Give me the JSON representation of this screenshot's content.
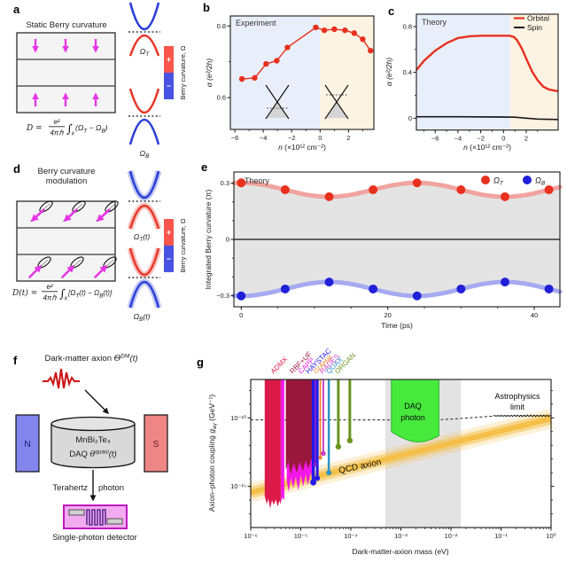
{
  "colors": {
    "accent_red": "#e8301f",
    "accent_blue": "#2020d8",
    "glow_red": "#f1a49e",
    "glow_blue": "#a6aaf0",
    "bg_blue": "#e9effa",
    "bg_orange": "#fdf3e3",
    "grey_fill": "#e4e4e4",
    "magenta": "#e636e6",
    "band_red": "#e8392b",
    "band_blue": "#2b3fd8",
    "colorbar_red": "#f8564d",
    "colorbar_blue": "#4853e4",
    "qcd_gold": "#f5bf45",
    "daq_green": "#46e93c"
  },
  "panel_a": {
    "letter": "a",
    "title": "Static Berry curvature",
    "formula": {
      "lhs": "D =",
      "num": "e²",
      "den": "4πℏ",
      "integral": "∫",
      "integral_sub": "k",
      "open": "(Ω",
      "sub_t": "T",
      "mid": " − Ω",
      "sub_b": "B",
      "close": ")"
    },
    "band_top_label": {
      "base": "Ω",
      "sub": "T",
      "suffix": ""
    },
    "band_bottom_label": {
      "base": "Ω",
      "sub": "B",
      "suffix": ""
    },
    "colorbar": {
      "plus": "+",
      "minus": "−",
      "label": "Berry curvature, Ω"
    }
  },
  "panel_b": {
    "letter": "b",
    "annotation": "Experiment",
    "xlabel_var": "n",
    "xlabel_units": " (×10¹² cm⁻²)",
    "ylabel": "α (e²/2h)",
    "x_ticks": [
      {
        "v": -6,
        "label": "−6"
      },
      {
        "v": -4,
        "label": "−4"
      },
      {
        "v": -2,
        "label": "−2"
      },
      {
        "v": 0,
        "label": "0"
      },
      {
        "v": 2,
        "label": "2"
      }
    ],
    "x_minor": [
      -5,
      -3,
      -1,
      1,
      3
    ],
    "y_ticks": [
      {
        "v": 0.8,
        "label": "0.8"
      },
      {
        "v": 0.6,
        "label": "0.6"
      }
    ],
    "y_minor": [
      0.7
    ]
  },
  "panel_c": {
    "letter": "c",
    "annotation": "Theory",
    "legend": [
      {
        "label": "Orbital",
        "color": "#e8301f"
      },
      {
        "label": "Spin",
        "color": "#1a1a1a"
      }
    ],
    "xlabel_var": "n",
    "xlabel_units": " (×10¹² cm⁻²)",
    "ylabel": "α (e²/2h)",
    "x_ticks": [
      {
        "v": -6,
        "label": "−6"
      },
      {
        "v": -4,
        "label": "−4"
      },
      {
        "v": -2,
        "label": "−2"
      },
      {
        "v": 0,
        "label": "0"
      },
      {
        "v": 2,
        "label": "2"
      }
    ],
    "x_minor": [
      -7,
      -5,
      -3,
      -1,
      1,
      3
    ],
    "y_ticks": [
      {
        "v": 0.8,
        "label": "0.8"
      },
      {
        "v": 0.4,
        "label": "0.4"
      },
      {
        "v": 0,
        "label": "0"
      }
    ],
    "y_minor": [
      0.6,
      0.2
    ]
  },
  "panel_d": {
    "letter": "d",
    "title_line1": "Berry curvature",
    "title_line2": "modulation",
    "formula": {
      "lhs": "D(t) =",
      "num": "e²",
      "den": "4πℏ",
      "integral": "∫",
      "integral_sub": "k",
      "open": "[Ω",
      "sub_t": "T",
      "mid": "(t) − Ω",
      "sub_b": "B",
      "close": "(t)]"
    },
    "band_top_label": {
      "base": "Ω",
      "sub": "T",
      "suffix": "(t)"
    },
    "band_bottom_label": {
      "base": "Ω",
      "sub": "B",
      "suffix": "(t)"
    },
    "colorbar": {
      "plus": "+",
      "minus": "−",
      "label": "Berry curvature, Ω"
    }
  },
  "panel_e": {
    "letter": "e",
    "annotation": "Theory",
    "xlabel": "Time (ps)",
    "ylabel": "Integrated Berry curvature (π)",
    "legend": {
      "omega": "Ω",
      "sub_t": "T",
      "sub_b": "B"
    },
    "x_ticks": [
      {
        "v": 0,
        "label": "0"
      },
      {
        "v": 20,
        "label": "20"
      },
      {
        "v": 40,
        "label": "40"
      }
    ],
    "x_minor": [
      5,
      10,
      15,
      25,
      30,
      35
    ],
    "y_ticks": [
      {
        "v": 0.3,
        "label": "0.3"
      },
      {
        "v": 0,
        "label": "0"
      },
      {
        "v": -0.3,
        "label": "−0.3"
      }
    ],
    "y_minor": [
      0.2,
      0.1,
      -0.1,
      -0.2
    ]
  },
  "panel_f": {
    "letter": "f",
    "axion_label": {
      "pre": "Dark-matter axion ",
      "theta": "Θ",
      "sup": "DM",
      "post": "(t)"
    },
    "magnet_n": "N",
    "magnet_s": "S",
    "crystal_line1": "MnBi₂Te₄",
    "crystal_line2": {
      "pre": "DAQ ",
      "theta": "θ",
      "sup": "quasi",
      "post": "(t)"
    },
    "photon_left": "Terahertz",
    "photon_right": "photon",
    "detector_label": "Single-photon detector"
  },
  "panel_g": {
    "letter": "g",
    "xlabel": "Dark-matter-axion mass (eV)",
    "ylabel": {
      "pre": "Axion–photon coupling ",
      "g": "g",
      "sub": "aγ",
      "post": " (GeV⁻¹)"
    },
    "daq_label_line1": "DAQ",
    "daq_label_line2": "photon",
    "qcd_label": "QCD axion",
    "astro_label_line1": "Astrophysics",
    "astro_label_line2": "limit"
  },
  "chart_data": [
    {
      "type": "scatter",
      "panel": "b",
      "title": "Experiment",
      "xlabel": "n (×10¹² cm⁻²)",
      "ylabel": "α (e²/2h)",
      "xlim": [
        -6.32,
        3.78
      ],
      "ylim": [
        0.51,
        0.83
      ],
      "color": "#e8301f",
      "x": [
        -5.5,
        -4.6,
        -3.8,
        -3.05,
        -2.3,
        -0.3,
        0.3,
        1.0,
        1.75,
        2.4,
        3.0,
        3.55
      ],
      "y": [
        0.652,
        0.655,
        0.694,
        0.703,
        0.74,
        0.796,
        0.788,
        0.791,
        0.788,
        0.78,
        0.763,
        0.731
      ]
    },
    {
      "type": "line",
      "panel": "c",
      "title": "Theory",
      "xlabel": "n (×10¹² cm⁻²)",
      "ylabel": "α (e²/2h)",
      "xlim": [
        -7.65,
        4.8
      ],
      "ylim": [
        -0.1,
        0.91
      ],
      "series": [
        {
          "name": "Orbital",
          "color": "#e8301f",
          "x": [
            -7.65,
            -7,
            -6,
            -5,
            -4,
            -3,
            -2,
            -1,
            0,
            0.5,
            0.9,
            1.2,
            1.6,
            2.0,
            2.5,
            3.0,
            3.5,
            4.0,
            4.8
          ],
          "y": [
            0.42,
            0.5,
            0.59,
            0.655,
            0.7,
            0.715,
            0.72,
            0.72,
            0.72,
            0.72,
            0.71,
            0.68,
            0.61,
            0.52,
            0.41,
            0.33,
            0.275,
            0.25,
            0.235
          ]
        },
        {
          "name": "Spin",
          "color": "#1a1a1a",
          "x": [
            -7.65,
            -4,
            0,
            1,
            2,
            3,
            4.8
          ],
          "y": [
            0.012,
            0.012,
            0.01,
            0.008,
            0.0,
            -0.008,
            -0.012
          ]
        }
      ]
    },
    {
      "type": "scatter-line",
      "panel": "e",
      "title": "Theory",
      "xlabel": "Time (ps)",
      "ylabel": "Integrated Berry curvature (π)",
      "xlim": [
        -1,
        43.5
      ],
      "ylim": [
        -0.36,
        0.36
      ],
      "t": [
        0,
        6,
        12,
        18,
        24,
        30,
        36,
        42
      ],
      "series": [
        {
          "name": "ΩT",
          "color": "#e8301f",
          "glow": "#f1a49e",
          "values": [
            0.302,
            0.265,
            0.228,
            0.265,
            0.302,
            0.265,
            0.228,
            0.265
          ]
        },
        {
          "name": "ΩB",
          "color": "#2020d8",
          "glow": "#a6aaf0",
          "values": [
            -0.302,
            -0.265,
            -0.228,
            -0.265,
            -0.302,
            -0.265,
            -0.228,
            -0.265
          ]
        }
      ],
      "wave": {
        "mean": 0.265,
        "amp": 0.0375,
        "period_ps": 24
      }
    },
    {
      "type": "exclusion-plot",
      "panel": "g",
      "xlabel": "Dark-matter-axion mass (eV)",
      "ylabel": "Axion–photon coupling gaγ (GeV⁻¹)",
      "xlim_log": [
        -6,
        0
      ],
      "ylim_log": [
        -18.0,
        -7.2
      ],
      "x_ticks": [
        {
          "logv": -6,
          "label": "10⁻⁶"
        },
        {
          "logv": -5,
          "label": "10⁻⁵"
        },
        {
          "logv": -4,
          "label": "10⁻⁴"
        },
        {
          "logv": -3,
          "label": "10⁻³"
        },
        {
          "logv": -2,
          "label": "10⁻²"
        },
        {
          "logv": -1,
          "label": "10⁻¹"
        },
        {
          "logv": 0,
          "label": "10⁰"
        }
      ],
      "y_ticks": [
        {
          "logv": -10,
          "label": "10⁻¹⁰"
        },
        {
          "logv": -15,
          "label": "10⁻¹⁵"
        }
      ],
      "y_minor": [
        -8,
        -9,
        -11,
        -12,
        -13,
        -14,
        -16,
        -17
      ],
      "grey_band": {
        "log_mass": [
          -3.31,
          -1.8
        ],
        "color": "#e3e3e3"
      },
      "qcd_band": {
        "label": "QCD axion",
        "color": "#f5bf45",
        "p1": [
          -6,
          -15.45
        ],
        "p2": [
          0,
          -10.05
        ]
      },
      "astro": {
        "label": "Astrophysics limit",
        "dash_points": [
          [
            -6,
            -10.15
          ],
          [
            -2.3,
            -10.15
          ],
          [
            -1.9,
            -10.07
          ],
          [
            -1.5,
            -9.96
          ],
          [
            -1.15,
            -9.87
          ]
        ],
        "wiggle_start": -1.15,
        "wiggle_log_g": -9.85
      },
      "daq_region": {
        "name": "DAQ photon",
        "color": "#46e93c",
        "edge": "#28b428",
        "log_mass": [
          -3.19,
          -2.24
        ],
        "bottom_log_g": [
          -11.0,
          -11.95,
          -11.3
        ]
      },
      "regions": [
        {
          "name": "CAPP-spikes",
          "color": "#f318e8",
          "log_mass": [
            -5.28,
            -4.76
          ],
          "bottom_profile": [
            [
              -5.28,
              -14.6
            ],
            [
              -5.24,
              -15.4
            ],
            [
              -5.2,
              -14.4
            ],
            [
              -5.15,
              -15.1
            ],
            [
              -5.1,
              -14.3
            ],
            [
              -5.05,
              -15.3
            ],
            [
              -5.0,
              -14.2
            ],
            [
              -4.95,
              -15.0
            ],
            [
              -4.9,
              -14.1
            ],
            [
              -4.86,
              -14.9
            ],
            [
              -4.8,
              -14.0
            ],
            [
              -4.76,
              -14.7
            ]
          ]
        },
        {
          "name": "RBF+UF",
          "color": "#99173c",
          "log_mass": [
            -5.3,
            -4.72
          ],
          "bottom_profile": [
            [
              -5.3,
              -13.8
            ],
            [
              -5.25,
              -13.2
            ],
            [
              -5.2,
              -14.1
            ],
            [
              -5.14,
              -13.3
            ],
            [
              -5.08,
              -14.0
            ],
            [
              -5.02,
              -13.2
            ],
            [
              -4.96,
              -13.9
            ],
            [
              -4.9,
              -13.1
            ],
            [
              -4.85,
              -13.7
            ],
            [
              -4.79,
              -13.0
            ],
            [
              -4.72,
              -13.4
            ]
          ]
        },
        {
          "name": "ADMX",
          "color": "#dc1a48",
          "log_mass": [
            -5.72,
            -5.4
          ],
          "bottom_profile": [
            [
              -5.72,
              -15.7
            ],
            [
              -5.68,
              -16.3
            ],
            [
              -5.65,
              -15.9
            ],
            [
              -5.61,
              -16.6
            ],
            [
              -5.575,
              -16.0
            ],
            [
              -5.54,
              -16.35
            ],
            [
              -5.5,
              -15.95
            ],
            [
              -5.46,
              -16.5
            ],
            [
              -5.43,
              -16.05
            ],
            [
              -5.4,
              -16.3
            ]
          ]
        },
        {
          "name": "CAPP",
          "color": "#f318e8",
          "log_mass": [
            -5.4,
            -5.33
          ],
          "bottom_profile": [
            [
              -5.4,
              -16.2
            ],
            [
              -5.37,
              -15.8
            ],
            [
              -5.33,
              -16.0
            ]
          ]
        }
      ],
      "lines": [
        {
          "name": "HAYSTAC",
          "color": "#2218e8",
          "log_mass": -4.75,
          "log_g_end": -14.7,
          "w": 3.5,
          "r": 3.5
        },
        {
          "name": "HAYSTAC-2",
          "color": "#2218e8",
          "log_mass": -4.67,
          "log_g_end": -14.4,
          "w": 3,
          "r": 3
        },
        {
          "name": "CAPP-line",
          "color": "#7a1fd0",
          "log_mass": -4.71,
          "log_g_end": -13.4,
          "w": 2,
          "r": 2.4
        },
        {
          "name": "GrAHal",
          "color": "#f08428",
          "log_mass": -4.61,
          "log_g_end": -12.9,
          "w": 1.8,
          "r": 2.2
        },
        {
          "name": "RADES",
          "color": "#cc3fc0",
          "log_mass": -4.55,
          "log_g_end": -12.6,
          "w": 2,
          "r": 2.8
        },
        {
          "name": "QUAX",
          "color": "#2f94c8",
          "log_mass": -4.44,
          "log_g_end": -14.0,
          "w": 2.5,
          "r": 3
        },
        {
          "name": "ORGAN",
          "color": "#6a9421",
          "log_mass": -4.25,
          "log_g_end": -12.1,
          "w": 3,
          "r": 3.2
        },
        {
          "name": "ORGAN-2",
          "color": "#6a9421",
          "log_mass": -4.02,
          "log_g_end": -11.65,
          "w": 3,
          "r": 3.2
        }
      ],
      "top_labels": [
        {
          "text": "ADMX",
          "color": "#dc1a48",
          "log_mass": -5.58
        },
        {
          "text": "RBF+UF",
          "color": "#99173c",
          "log_mass": -5.2
        },
        {
          "text": "CAPP",
          "color": "#f318e8",
          "log_mass": -5.03
        },
        {
          "text": "HAYSTAC",
          "color": "#2218e8",
          "log_mass": -4.88
        },
        {
          "text": "GrAHal",
          "color": "#f08428",
          "log_mass": -4.73
        },
        {
          "text": "RADES",
          "color": "#cc3fc0",
          "log_mass": -4.6
        },
        {
          "text": "QUAX",
          "color": "#2f94c8",
          "log_mass": -4.47
        },
        {
          "text": "ORGAN",
          "color": "#6a9421",
          "log_mass": -4.3
        }
      ]
    }
  ]
}
